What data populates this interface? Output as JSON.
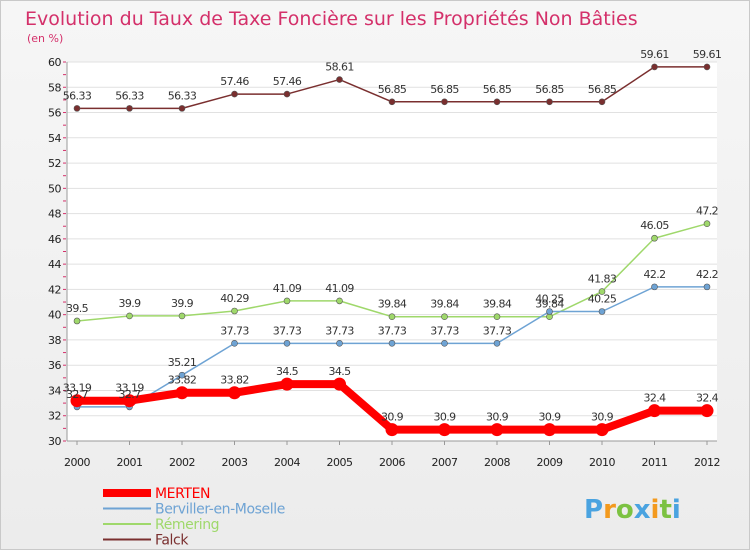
{
  "chart_data": {
    "type": "line",
    "title": "Evolution du Taux de Taxe Foncière sur les Propriétés Non Bâties",
    "ylabel": "(en %)",
    "xlabel": "",
    "ylim": [
      30,
      60
    ],
    "yticks": [
      30,
      32,
      34,
      36,
      38,
      40,
      42,
      44,
      46,
      48,
      50,
      52,
      54,
      56,
      58,
      60
    ],
    "x": [
      "2000",
      "2001",
      "2002",
      "2003",
      "2004",
      "2005",
      "2006",
      "2007",
      "2008",
      "2009",
      "2010",
      "2011",
      "2012"
    ],
    "legend_position": "bottom-left",
    "series": [
      {
        "name": "Falck",
        "color": "#7a2f2f",
        "values": [
          56.33,
          56.33,
          56.33,
          57.46,
          57.46,
          58.61,
          56.85,
          56.85,
          56.85,
          56.85,
          56.85,
          59.61,
          59.61
        ],
        "labels": [
          "56.33",
          "56.33",
          "56.33",
          "57.46",
          "57.46",
          "58.61",
          "56.85",
          "56.85",
          "56.85",
          "56.85",
          "56.85",
          "59.61",
          "59.61"
        ]
      },
      {
        "name": "Rémering",
        "color": "#9fd86b",
        "values": [
          39.5,
          39.9,
          39.9,
          40.29,
          41.09,
          41.09,
          39.84,
          39.84,
          39.84,
          39.84,
          41.83,
          46.05,
          47.2
        ],
        "labels": [
          "39.5",
          "39.9",
          "39.9",
          "40.29",
          "41.09",
          "41.09",
          "39.84",
          "39.84",
          "39.84",
          "39.84",
          "41.83",
          "46.05",
          "47.2"
        ]
      },
      {
        "name": "Berviller-en-Moselle",
        "color": "#6ea3d4",
        "values": [
          32.7,
          32.7,
          35.21,
          37.73,
          37.73,
          37.73,
          37.73,
          37.73,
          37.73,
          40.25,
          40.25,
          42.2,
          42.2
        ],
        "labels": [
          "32.7",
          "32.7",
          "35.21",
          "37.73",
          "37.73",
          "37.73",
          "37.73",
          "37.73",
          "37.73",
          "40.25",
          "40.25",
          "42.2",
          "42.2"
        ]
      },
      {
        "name": "MERTEN",
        "color": "#ff0000",
        "values": [
          33.19,
          33.19,
          33.82,
          33.82,
          34.5,
          34.5,
          30.9,
          30.9,
          30.9,
          30.9,
          30.9,
          32.4,
          32.4
        ],
        "labels": [
          "33.19",
          "33.19",
          "33.82",
          "33.82",
          "34.5",
          "34.5",
          "30.9",
          "30.9",
          "30.9",
          "30.9",
          "30.9",
          "32.4",
          "32.4"
        ]
      }
    ],
    "legend_order": [
      "MERTEN",
      "Berviller-en-Moselle",
      "Rémering",
      "Falck"
    ]
  },
  "logo": {
    "letters": [
      "P",
      "r",
      "o",
      "x",
      "i",
      "t",
      "i"
    ],
    "colors": [
      "#4aa3e0",
      "#f39a1e",
      "#7cc242",
      "#4aa3e0",
      "#f39a1e",
      "#7cc242",
      "#4aa3e0"
    ]
  }
}
